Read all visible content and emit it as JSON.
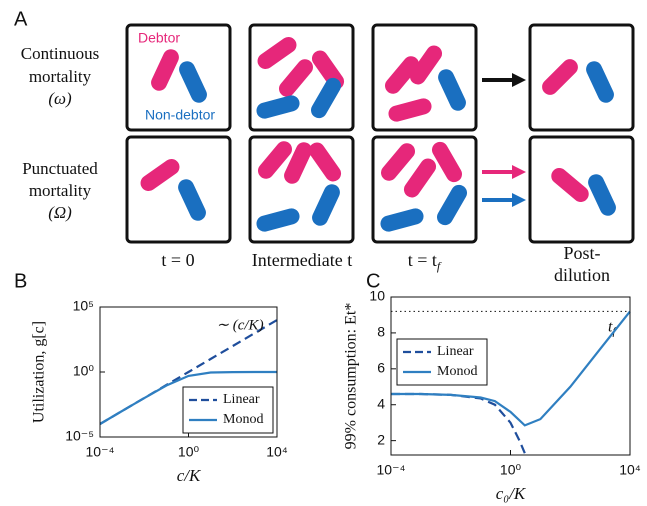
{
  "panel_labels": [
    "A",
    "B",
    "C"
  ],
  "diagram": {
    "rows": [
      {
        "lines": [
          "Continuous",
          "mortality",
          "(ω)"
        ]
      },
      {
        "lines": [
          "Punctuated",
          "mortality",
          "(Ω)"
        ]
      }
    ],
    "legend": {
      "debtor": "Debtor",
      "non_debtor": "Non-debtor"
    },
    "columns": [
      {
        "text": "t = 0"
      },
      {
        "text": "Intermediate t"
      },
      {
        "text": "t = t",
        "sub": "f"
      },
      {
        "lines": [
          "Post-",
          "dilution"
        ]
      }
    ]
  },
  "chart_data": [
    {
      "type": "line",
      "xlabel": "c/K",
      "ylabel": "Utilization, g[c]",
      "annotation": "∼ (c/K)",
      "xscale": "log",
      "yscale": "log",
      "xlim": [
        0.0001,
        10000
      ],
      "ylim": [
        1e-05,
        100000
      ],
      "xticks": [
        {
          "value": 0.0001,
          "label": "10⁻⁴"
        },
        {
          "value": 1,
          "label": "10⁰"
        },
        {
          "value": 10000,
          "label": "10⁴"
        }
      ],
      "yticks": [
        {
          "value": 1e-05,
          "label": "10⁻⁵"
        },
        {
          "value": 1,
          "label": "10⁰"
        },
        {
          "value": 100000,
          "label": "10⁵"
        }
      ],
      "legend": "lower right",
      "series": [
        {
          "name": "Linear",
          "color": "#1f4e9c",
          "dash": true,
          "x": [
            0.0001,
            0.001,
            0.01,
            0.1,
            1,
            10,
            100,
            1000,
            10000
          ],
          "values": [
            0.0001,
            0.001,
            0.01,
            0.1,
            1,
            10,
            100,
            1000,
            10000
          ]
        },
        {
          "name": "Monod",
          "color": "#2f7fc1",
          "dash": false,
          "x": [
            0.0001,
            0.001,
            0.01,
            0.1,
            1,
            10,
            100,
            1000,
            10000
          ],
          "values": [
            0.0001,
            0.000999,
            0.0099,
            0.0909,
            0.5,
            0.909,
            0.99,
            0.999,
            0.9999
          ]
        }
      ]
    },
    {
      "type": "line",
      "xlabel": "c₀/K",
      "ylabel": "99% consumption: Et*",
      "xscale": "log",
      "yscale": "linear",
      "xlim": [
        0.0001,
        10000
      ],
      "ylim": [
        1.2,
        10
      ],
      "xticks": [
        {
          "value": 0.0001,
          "label": "10⁻⁴"
        },
        {
          "value": 1,
          "label": "10⁰"
        },
        {
          "value": 10000,
          "label": "10⁴"
        }
      ],
      "yticks": [
        2,
        4,
        6,
        8,
        10
      ],
      "reference_line": {
        "value": 9.2,
        "label": "t",
        "label_sub": "f"
      },
      "legend": "upper left",
      "series": [
        {
          "name": "Linear",
          "color": "#1f4e9c",
          "dash": true,
          "x": [
            0.0001,
            0.001,
            0.01,
            0.1,
            0.3,
            1,
            2,
            3
          ],
          "values": [
            4.6,
            4.6,
            4.55,
            4.35,
            4.0,
            3.0,
            2.0,
            1.3
          ]
        },
        {
          "name": "Monod",
          "color": "#2f7fc1",
          "dash": false,
          "x": [
            0.0001,
            0.001,
            0.01,
            0.1,
            0.3,
            1,
            3,
            10,
            100,
            1000,
            10000
          ],
          "values": [
            4.6,
            4.6,
            4.55,
            4.4,
            4.2,
            3.6,
            2.85,
            3.2,
            5.0,
            7.1,
            9.2
          ]
        }
      ]
    }
  ]
}
